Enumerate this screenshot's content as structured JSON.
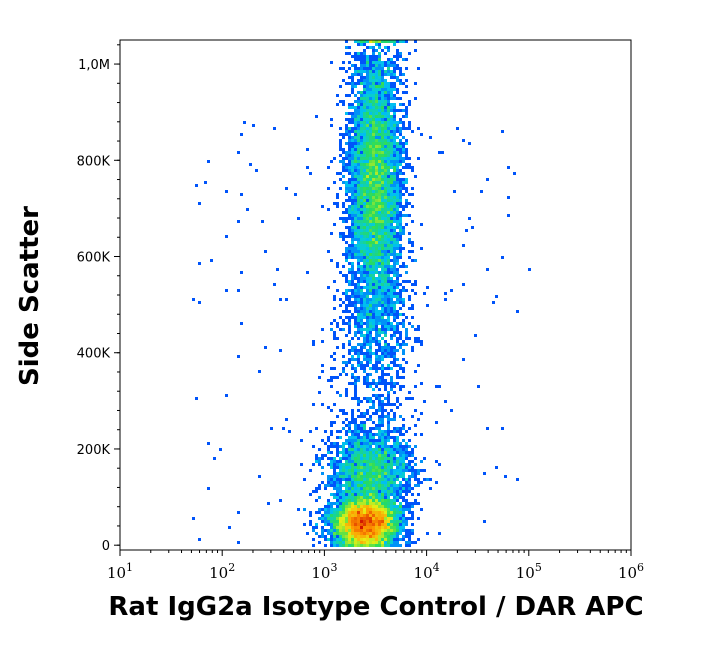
{
  "chart_data": {
    "type": "scatter",
    "style": "density pseudocolor (blue-cyan-green-yellow-red)",
    "xlabel": "Rat IgG2a Isotype Control / DAR APC",
    "ylabel": "Side Scatter",
    "x_scale": "log",
    "xlim": [
      10,
      1000000
    ],
    "ylim": [
      -10000,
      1050000
    ],
    "x_ticks": [
      {
        "value": 10,
        "base": "10",
        "exp": "1"
      },
      {
        "value": 100,
        "base": "10",
        "exp": "2"
      },
      {
        "value": 1000,
        "base": "10",
        "exp": "3"
      },
      {
        "value": 10000,
        "base": "10",
        "exp": "4"
      },
      {
        "value": 100000,
        "base": "10",
        "exp": "5"
      },
      {
        "value": 1000000,
        "base": "10",
        "exp": "6"
      }
    ],
    "y_ticks": [
      {
        "value": 0,
        "label": "0"
      },
      {
        "value": 200000,
        "label": "200K"
      },
      {
        "value": 400000,
        "label": "400K"
      },
      {
        "value": 600000,
        "label": "600K"
      },
      {
        "value": 800000,
        "label": "800K"
      },
      {
        "value": 1000000,
        "label": "1,0M"
      }
    ],
    "populations": [
      {
        "log_x_center": 3.4,
        "log_x_sd": 0.15,
        "y_center": 45000,
        "y_sd": 25000,
        "weight": 0.4
      },
      {
        "log_x_center": 3.45,
        "log_x_sd": 0.2,
        "y_center": 150000,
        "y_sd": 50000,
        "weight": 0.16
      },
      {
        "log_x_center": 3.5,
        "log_x_sd": 0.13,
        "y_center": 760000,
        "y_sd": 140000,
        "weight": 0.38
      },
      {
        "log_x_center": 3.5,
        "log_x_sd": 0.2,
        "y_center": 450000,
        "y_sd": 110000,
        "weight": 0.06
      }
    ],
    "grid": false,
    "legend": "none"
  }
}
